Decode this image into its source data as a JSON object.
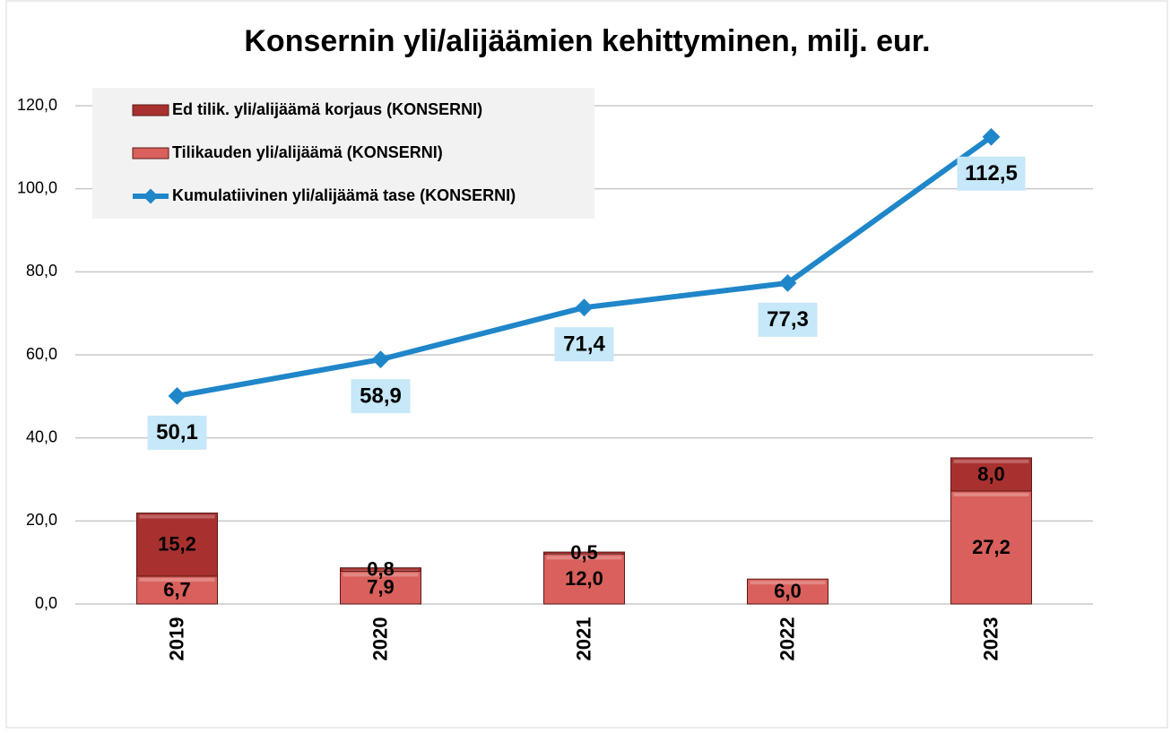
{
  "chart_data": {
    "type": "bar-line",
    "title": "Konsernin yli/alijäämien kehittyminen, milj. eur.",
    "categories": [
      "2019",
      "2020",
      "2021",
      "2022",
      "2023"
    ],
    "series": [
      {
        "name": "Ed tilik. yli/alijäämä korjaus (KONSERNI)",
        "type": "bar",
        "color": "#a8312f",
        "values": [
          15.2,
          0.8,
          0.5,
          null,
          8.0
        ],
        "value_labels": [
          "15,2",
          "0,8",
          "0,5",
          null,
          "8,0"
        ]
      },
      {
        "name": "Tilikauden yli/alijäämä (KONSERNI)",
        "type": "bar",
        "color": "#d9605c",
        "values": [
          6.7,
          7.9,
          12.0,
          6.0,
          27.2
        ],
        "value_labels": [
          "6,7",
          "7,9",
          "12,0",
          "6,0",
          "27,2"
        ]
      },
      {
        "name": "Kumulatiivinen yli/alijäämä tase (KONSERNI)",
        "type": "line",
        "color": "#1f86c9",
        "values": [
          50.1,
          58.9,
          71.4,
          77.3,
          112.5
        ],
        "value_labels": [
          "50,1",
          "58,9",
          "71,4",
          "77,3",
          "112,5"
        ]
      }
    ],
    "stack_order": [
      1,
      0
    ],
    "ylim": [
      0,
      120
    ],
    "yticks": [
      {
        "value": 0,
        "label": "0,0"
      },
      {
        "value": 20,
        "label": "20,0"
      },
      {
        "value": 40,
        "label": "40,0"
      },
      {
        "value": 60,
        "label": "60,0"
      },
      {
        "value": 80,
        "label": "80,0"
      },
      {
        "value": 100,
        "label": "100,0"
      },
      {
        "value": 120,
        "label": "120,0"
      }
    ],
    "grid": true,
    "legend": "upper left"
  }
}
